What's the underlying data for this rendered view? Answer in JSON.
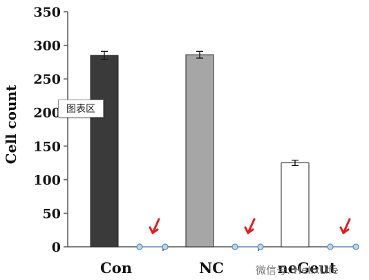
{
  "chart_data": {
    "type": "bar",
    "ylabel": "Cell count",
    "ylim": [
      0,
      350
    ],
    "yticks": [
      0,
      50,
      100,
      150,
      200,
      250,
      300,
      350
    ],
    "categories": [
      "Con",
      "NC",
      "neGeut"
    ],
    "values": [
      285,
      286,
      125
    ],
    "errors": [
      6,
      5,
      4
    ],
    "bar_colors": [
      "#3a3a3a",
      "#a6a6a6",
      "#ffffff"
    ],
    "secondary_values": [
      0,
      0,
      0
    ],
    "annotation_color": "#e8191c"
  },
  "tooltip": {
    "text": "图表区"
  },
  "watermark": {
    "text": "微信号: HelixLife"
  }
}
